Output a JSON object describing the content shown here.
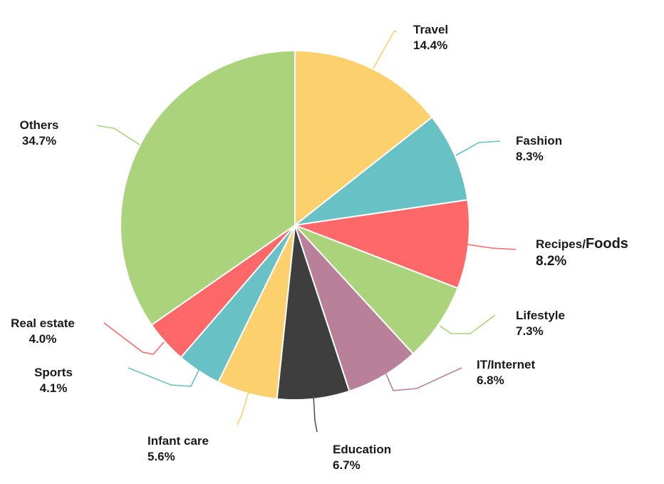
{
  "chart_data": {
    "type": "pie",
    "title": "",
    "legend": "none",
    "slices": [
      {
        "label": "Travel",
        "value": 14.4,
        "value_label": "14.4%",
        "color": "#FDD06E"
      },
      {
        "label": "Fashion",
        "value": 8.3,
        "value_label": "8.3%",
        "color": "#67C1C5"
      },
      {
        "label": "Recipes/Foods",
        "value": 8.2,
        "value_label": "8.2%",
        "color": "#FE6869"
      },
      {
        "label": "Lifestyle",
        "value": 7.3,
        "value_label": "7.3%",
        "color": "#ABD37C"
      },
      {
        "label": "IT/Internet",
        "value": 6.8,
        "value_label": "6.8%",
        "color": "#B88099"
      },
      {
        "label": "Education",
        "value": 6.7,
        "value_label": "6.7%",
        "color": "#3E3E3E"
      },
      {
        "label": "Infant care",
        "value": 5.6,
        "value_label": "5.6%",
        "color": "#FDD06E"
      },
      {
        "label": "Sports",
        "value": 4.1,
        "value_label": "4.1%",
        "color": "#67C1C5"
      },
      {
        "label": "Real estate",
        "value": 4.0,
        "value_label": "4.0%",
        "color": "#FE6869"
      },
      {
        "label": "Others",
        "value": 34.7,
        "value_label": "34.7%",
        "color": "#ABD37C"
      }
    ]
  }
}
